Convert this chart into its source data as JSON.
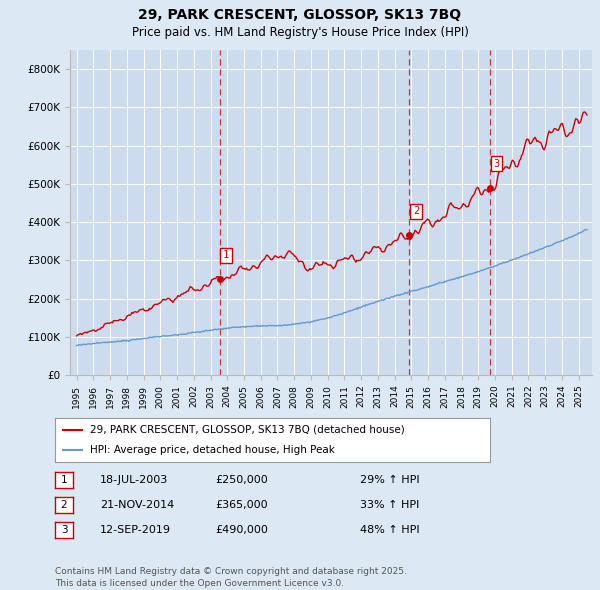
{
  "title_line1": "29, PARK CRESCENT, GLOSSOP, SK13 7BQ",
  "title_line2": "Price paid vs. HM Land Registry's House Price Index (HPI)",
  "background_color": "#dce8f4",
  "plot_background": "#ccdcee",
  "grid_color": "#ffffff",
  "ylim": [
    0,
    850000
  ],
  "yticks": [
    0,
    100000,
    200000,
    300000,
    400000,
    500000,
    600000,
    700000,
    800000
  ],
  "ytick_labels": [
    "£0",
    "£100K",
    "£200K",
    "£300K",
    "£400K",
    "£500K",
    "£600K",
    "£700K",
    "£800K"
  ],
  "xlim_start": 1994.6,
  "xlim_end": 2025.8,
  "sale_dates": [
    2003.54,
    2014.89,
    2019.71
  ],
  "sale_prices": [
    250000,
    365000,
    490000
  ],
  "sale_labels": [
    "1",
    "2",
    "3"
  ],
  "sale_label_color": "#cc0000",
  "dashed_line_color": "#cc0000",
  "red_line_color": "#cc0000",
  "blue_line_color": "#6699cc",
  "legend_entries": [
    "29, PARK CRESCENT, GLOSSOP, SK13 7BQ (detached house)",
    "HPI: Average price, detached house, High Peak"
  ],
  "table_rows": [
    [
      "1",
      "18-JUL-2003",
      "£250,000",
      "29% ↑ HPI"
    ],
    [
      "2",
      "21-NOV-2014",
      "£365,000",
      "33% ↑ HPI"
    ],
    [
      "3",
      "12-SEP-2019",
      "£490,000",
      "48% ↑ HPI"
    ]
  ],
  "footnote_line1": "Contains HM Land Registry data © Crown copyright and database right 2025.",
  "footnote_line2": "This data is licensed under the Open Government Licence v3.0."
}
